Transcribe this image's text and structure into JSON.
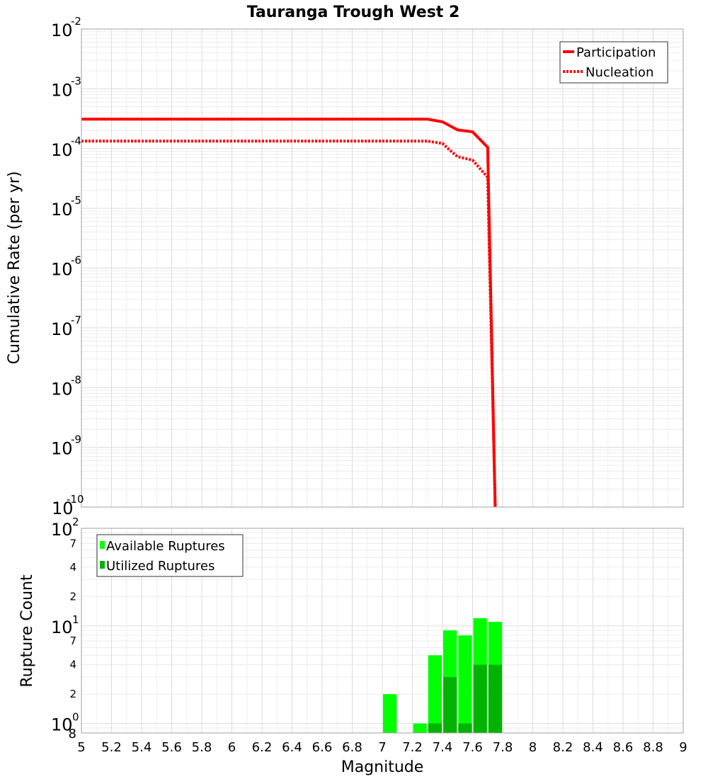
{
  "chart_data": [
    {
      "type": "line",
      "title": "Tauranga Trough West 2",
      "xlabel": "",
      "ylabel": "Cumulative Rate (per yr)",
      "yscale": "log",
      "xlim": [
        5,
        9
      ],
      "ylim": [
        1e-10,
        0.01
      ],
      "grid": true,
      "legend_position": "top-right",
      "y_major_ticks": [
        {
          "base": "10",
          "exp": "-2",
          "value": 0.01
        },
        {
          "base": "10",
          "exp": "-3",
          "value": 0.001
        },
        {
          "base": "10",
          "exp": "-4",
          "value": 0.0001
        },
        {
          "base": "10",
          "exp": "-5",
          "value": 1e-05
        },
        {
          "base": "10",
          "exp": "-6",
          "value": 1e-06
        },
        {
          "base": "10",
          "exp": "-7",
          "value": 1e-07
        },
        {
          "base": "10",
          "exp": "-8",
          "value": 1e-08
        },
        {
          "base": "10",
          "exp": "-9",
          "value": 1e-09
        },
        {
          "base": "10",
          "exp": "-10",
          "value": 1e-10
        }
      ],
      "series": [
        {
          "name": "Participation",
          "color": "#ff0000",
          "style": "solid",
          "x": [
            5.0,
            7.3,
            7.4,
            7.5,
            7.6,
            7.7,
            7.75
          ],
          "y": [
            0.00031,
            0.00031,
            0.00028,
            0.000205,
            0.00019,
            0.000105,
            1e-10
          ]
        },
        {
          "name": "Nucleation",
          "color": "#ff0000",
          "style": "dotted",
          "x": [
            5.0,
            7.3,
            7.4,
            7.45,
            7.5,
            7.6,
            7.7,
            7.75
          ],
          "y": [
            0.000133,
            0.000133,
            0.000122,
            9.35e-05,
            7.3e-05,
            6.4e-05,
            3.3e-05,
            1e-10
          ]
        }
      ]
    },
    {
      "type": "bar",
      "xlabel": "Magnitude",
      "ylabel": "Rupture Count",
      "yscale": "log",
      "xlim": [
        5,
        9
      ],
      "ylim": [
        0.8,
        100
      ],
      "grid": true,
      "legend_position": "top-left",
      "x_ticks": [
        "5",
        "5.2",
        "5.4",
        "5.6",
        "5.8",
        "6",
        "6.2",
        "6.4",
        "6.6",
        "6.8",
        "7",
        "7.2",
        "7.4",
        "7.6",
        "7.8",
        "8",
        "8.2",
        "8.4",
        "8.6",
        "8.8",
        "9"
      ],
      "y_major_ticks": [
        {
          "base": "10",
          "exp": "2",
          "value": 100
        },
        {
          "base": "10",
          "exp": "1",
          "value": 10
        },
        {
          "base": "10",
          "exp": "0",
          "value": 1
        }
      ],
      "y_minor_ticks": [
        {
          "label": "7",
          "value": 70
        },
        {
          "label": "4",
          "value": 40
        },
        {
          "label": "2",
          "value": 20
        },
        {
          "label": "7",
          "value": 7
        },
        {
          "label": "4",
          "value": 4
        },
        {
          "label": "2",
          "value": 2
        },
        {
          "label": "8",
          "value": 0.8
        }
      ],
      "series": [
        {
          "name": "Available Ruptures",
          "color": "#00ff00",
          "x": [
            7.05,
            7.25,
            7.35,
            7.45,
            7.55,
            7.65,
            7.75
          ],
          "values": [
            2,
            1,
            5,
            9,
            8,
            12,
            11
          ]
        },
        {
          "name": "Utilized Ruptures",
          "color": "#00b300",
          "x": [
            7.05,
            7.25,
            7.35,
            7.45,
            7.55,
            7.65,
            7.75
          ],
          "values": [
            0,
            0,
            1,
            3,
            1,
            4,
            4
          ]
        }
      ]
    }
  ]
}
